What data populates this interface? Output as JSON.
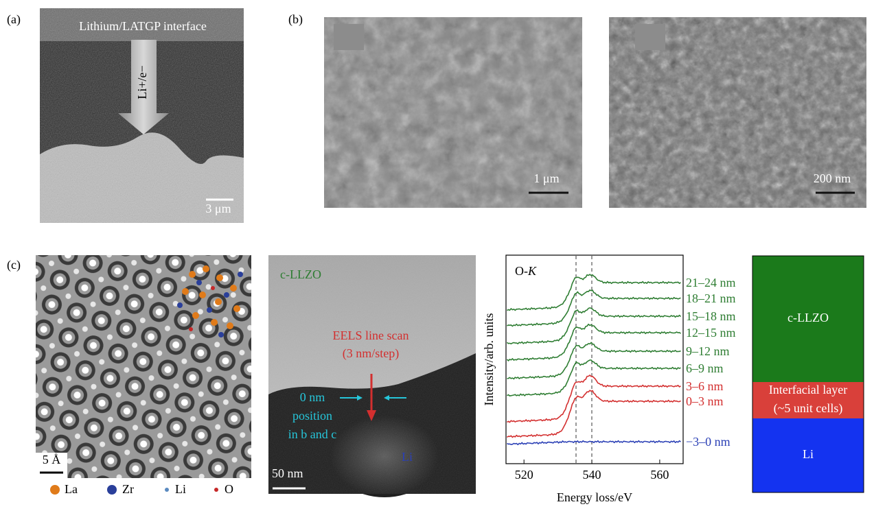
{
  "figure": {
    "a": {
      "label": "(a)",
      "title": "Lithium/LATGP interface",
      "arrow_label": "Li+/e−",
      "scale_bar": "3 μm"
    },
    "b": {
      "label": "(b)",
      "scale_bars": [
        "1 μm",
        "200 nm"
      ]
    },
    "c": {
      "label": "(c)",
      "lattice": {
        "scale_bar": "5 Å",
        "legend": [
          "La",
          "Zr",
          "Li",
          "O"
        ]
      },
      "tem": {
        "top_label": "c-LLZO",
        "scan_label": "EELS line scan",
        "scan_step": "(3 nm/step)",
        "zero_label": [
          "0 nm",
          "position",
          "in b and c"
        ],
        "bottom_label": "Li",
        "scale_bar": "50 nm"
      },
      "eels": {
        "title": "O-",
        "title_italic": "K",
        "xlabel": "Energy loss/eV",
        "ylabel": "Intensity/arb. units",
        "xlim": [
          514.7,
          566.9
        ],
        "xticks": [
          520,
          540,
          560
        ],
        "spectra": [
          {
            "name": "21–24 nm",
            "color": "#2e7d32"
          },
          {
            "name": "18–21 nm",
            "color": "#2e7d32"
          },
          {
            "name": "15–18 nm",
            "color": "#2e7d32"
          },
          {
            "name": "12–15 nm",
            "color": "#2e7d32"
          },
          {
            "name": "9–12 nm",
            "color": "#2e7d32"
          },
          {
            "name": "6–9 nm",
            "color": "#2e7d32"
          },
          {
            "name": "3–6 nm",
            "color": "#d32f2f"
          },
          {
            "name": "0–3 nm",
            "color": "#d32f2f"
          },
          {
            "name": "−3–0 nm",
            "color": "#2a3fb5"
          }
        ]
      },
      "layers": {
        "top": "c-LLZO",
        "middle": [
          "Interfacial layer",
          "(~5 unit cells)"
        ],
        "bottom": "Li"
      }
    }
  }
}
